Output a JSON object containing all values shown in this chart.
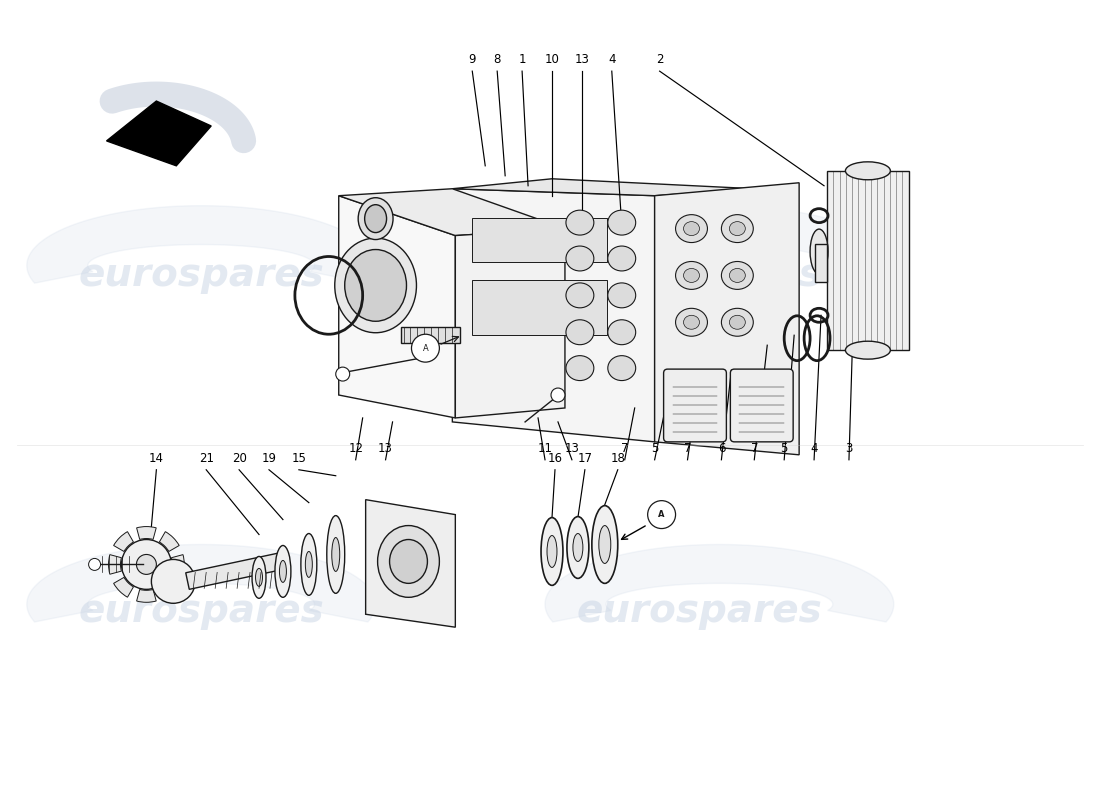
{
  "background_color": "#ffffff",
  "line_color": "#1a1a1a",
  "watermark_color": "#c8d4e4",
  "watermark_alpha": 0.4,
  "fig_width": 11.0,
  "fig_height": 8.0,
  "top_labels": [
    [
      "9",
      4.72,
      7.35,
      4.85,
      6.35
    ],
    [
      "8",
      4.97,
      7.35,
      5.05,
      6.25
    ],
    [
      "1",
      5.22,
      7.35,
      5.28,
      6.15
    ],
    [
      "10",
      5.52,
      7.35,
      5.52,
      6.05
    ],
    [
      "13",
      5.82,
      7.35,
      5.82,
      5.85
    ],
    [
      "4",
      6.12,
      7.35,
      6.22,
      5.75
    ],
    [
      "2",
      6.6,
      7.35,
      8.25,
      6.15
    ]
  ],
  "bottom_labels": [
    [
      "12",
      3.55,
      3.45,
      3.62,
      3.82
    ],
    [
      "13",
      3.85,
      3.45,
      3.92,
      3.78
    ],
    [
      "11",
      5.45,
      3.45,
      5.38,
      3.82
    ],
    [
      "13",
      5.72,
      3.45,
      5.58,
      3.78
    ],
    [
      "7",
      6.25,
      3.45,
      6.35,
      3.92
    ],
    [
      "5",
      6.55,
      3.45,
      6.65,
      3.88
    ],
    [
      "7",
      6.88,
      3.45,
      6.98,
      4.1
    ],
    [
      "6",
      7.22,
      3.45,
      7.32,
      4.3
    ],
    [
      "7",
      7.55,
      3.45,
      7.68,
      4.55
    ],
    [
      "5",
      7.85,
      3.45,
      7.95,
      4.65
    ],
    [
      "4",
      8.15,
      3.45,
      8.22,
      4.85
    ],
    [
      "3",
      8.5,
      3.45,
      8.55,
      5.05
    ]
  ],
  "lower_left_labels": [
    [
      "14",
      1.55,
      6.35,
      2.05,
      5.98
    ],
    [
      "21",
      2.05,
      6.35,
      2.62,
      5.92
    ],
    [
      "20",
      2.38,
      6.35,
      2.88,
      5.88
    ],
    [
      "19",
      2.68,
      6.35,
      3.15,
      5.82
    ],
    [
      "15",
      2.98,
      6.35,
      3.38,
      5.72
    ]
  ],
  "lower_right_labels": [
    [
      "16",
      5.65,
      6.35,
      5.62,
      5.98
    ],
    [
      "17",
      5.95,
      6.35,
      5.88,
      5.92
    ],
    [
      "18",
      6.25,
      6.35,
      6.08,
      5.78
    ]
  ]
}
